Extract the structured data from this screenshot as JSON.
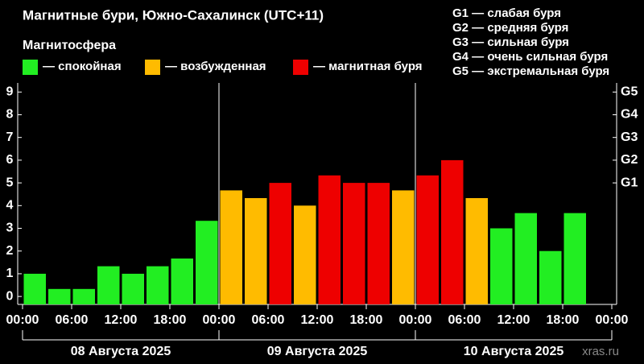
{
  "chart_data": {
    "type": "bar",
    "title": "Магнитные бури, Южно-Сахалинск (UTC+11)",
    "subtitle": "Магнитосфера",
    "legend": [
      {
        "label": "— спокойная",
        "color": "#22ee22"
      },
      {
        "label": "— возбужденная",
        "color": "#ffbb00"
      },
      {
        "label": "— магнитная буря",
        "color": "#ee0000"
      }
    ],
    "g_scale": [
      "G1 — слабая буря",
      "G2 — средняя буря",
      "G3 — сильная буря",
      "G4 — очень сильная буря",
      "G5 — экстремальная буря"
    ],
    "x": [
      0,
      3,
      6,
      9,
      12,
      15,
      18,
      21,
      24,
      27,
      30,
      33,
      36,
      39,
      42,
      45,
      48,
      51,
      54,
      57,
      60,
      63,
      66,
      69
    ],
    "values": [
      1.0,
      0.33,
      0.33,
      1.33,
      1.0,
      1.33,
      1.67,
      3.33,
      4.67,
      4.33,
      5.0,
      4.0,
      5.33,
      5.0,
      5.0,
      4.67,
      5.33,
      6.0,
      4.33,
      3.0,
      3.67,
      2.0,
      3.67,
      null
    ],
    "colors": [
      "#22ee22",
      "#22ee22",
      "#22ee22",
      "#22ee22",
      "#22ee22",
      "#22ee22",
      "#22ee22",
      "#22ee22",
      "#ffbb00",
      "#ffbb00",
      "#ee0000",
      "#ffbb00",
      "#ee0000",
      "#ee0000",
      "#ee0000",
      "#ffbb00",
      "#ee0000",
      "#ee0000",
      "#ffbb00",
      "#22ee22",
      "#22ee22",
      "#22ee22",
      "#22ee22",
      null
    ],
    "bin_width": 3,
    "xlim": [
      0,
      72
    ],
    "xticks": [
      {
        "value": 0,
        "label": "00:00"
      },
      {
        "value": 6,
        "label": "06:00"
      },
      {
        "value": 12,
        "label": "12:00"
      },
      {
        "value": 18,
        "label": "18:00"
      },
      {
        "value": 24,
        "label": "00:00"
      },
      {
        "value": 30,
        "label": "06:00"
      },
      {
        "value": 36,
        "label": "12:00"
      },
      {
        "value": 42,
        "label": "18:00"
      },
      {
        "value": 48,
        "label": "00:00"
      },
      {
        "value": 54,
        "label": "06:00"
      },
      {
        "value": 60,
        "label": "12:00"
      },
      {
        "value": 66,
        "label": "18:00"
      },
      {
        "value": 72,
        "label": "00:00"
      }
    ],
    "day_boundaries": [
      0,
      24,
      48,
      72
    ],
    "days": [
      "08 Августа 2025",
      "09 Августа 2025",
      "10 Августа 2025"
    ],
    "ylim": [
      -0.35,
      9.4
    ],
    "yticks": [
      0,
      1,
      2,
      3,
      4,
      5,
      6,
      7,
      8,
      9
    ],
    "y2ticks": [
      {
        "value": 5,
        "label": "G1"
      },
      {
        "value": 6,
        "label": "G2"
      },
      {
        "value": 7,
        "label": "G3"
      },
      {
        "value": 8,
        "label": "G4"
      },
      {
        "value": 9,
        "label": "G5"
      }
    ],
    "watermark": "xras.ru"
  }
}
